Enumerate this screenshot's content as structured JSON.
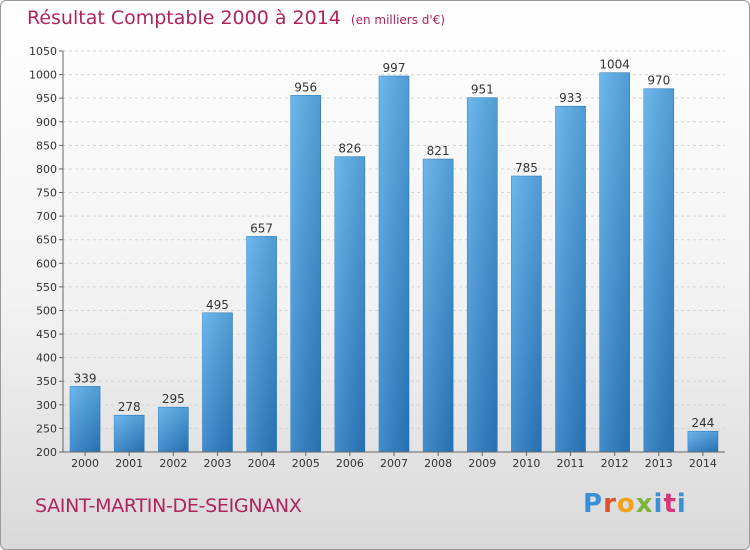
{
  "header": {
    "title": "Résultat Comptable 2000 à 2014",
    "unit": "(en milliers d'€)"
  },
  "footer": {
    "town": "SAINT-MARTIN-DE-SEIGNANX",
    "logo": "Proxiti"
  },
  "chart_data": {
    "type": "bar",
    "categories": [
      "2000",
      "2001",
      "2002",
      "2003",
      "2004",
      "2005",
      "2006",
      "2007",
      "2008",
      "2009",
      "2010",
      "2011",
      "2012",
      "2013",
      "2014"
    ],
    "values": [
      339,
      278,
      295,
      495,
      657,
      956,
      826,
      997,
      821,
      951,
      785,
      933,
      1004,
      970,
      244
    ],
    "ylim": [
      200,
      1050
    ],
    "yticks": [
      200,
      250,
      300,
      350,
      400,
      450,
      500,
      550,
      600,
      650,
      700,
      750,
      800,
      850,
      900,
      950,
      1000,
      1050
    ],
    "grid": true,
    "bar_color": "#4a9fe0",
    "title_color": "#b0245e"
  }
}
